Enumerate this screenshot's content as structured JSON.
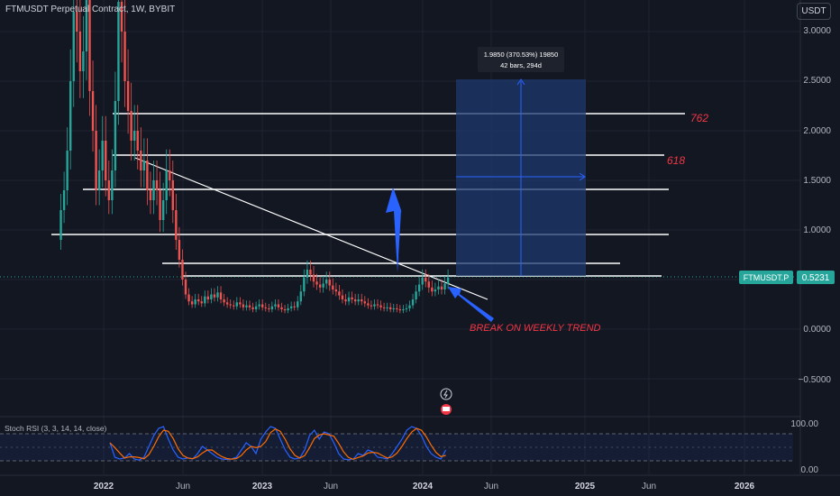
{
  "header": {
    "symbol_title": "FTMUSDT Perpetual Contract, 1W, BYBIT"
  },
  "currency_button": {
    "label": "USDT"
  },
  "price_axis": {
    "ticks": [
      "3.0000",
      "2.5000",
      "2.0000",
      "1.5000",
      "1.0000",
      "0.5000",
      "0.0000",
      "−0.5000"
    ]
  },
  "last_price": {
    "symbol": "FTMUSDT.P",
    "value": "0.5231",
    "color": "#26a69a"
  },
  "measure_tool": {
    "line1": "1.9850 (370.53%) 19850",
    "line2": "42 bars, 294d"
  },
  "fib_labels": {
    "level_762": "762",
    "level_618": "618"
  },
  "annotation": {
    "text": "BREAK ON WEEKLY TREND"
  },
  "stoch_rsi": {
    "label": "Stoch RSI (3, 3, 14, 14, close)",
    "ticks": [
      "100.00",
      "0.00"
    ]
  },
  "time_axis": {
    "labels": [
      "2022",
      "Jun",
      "2023",
      "Jun",
      "2024",
      "Jun",
      "2025",
      "Jun",
      "2026"
    ]
  },
  "colors": {
    "up": "#26a69a",
    "down": "#ef5350",
    "arrow": "#2962ff",
    "fib_text": "#f23645",
    "k_line": "#2962ff",
    "d_line": "#ff6d00"
  },
  "chart_data": {
    "type": "candlestick",
    "symbol": "FTMUSDT.P",
    "timeframe": "1W",
    "exchange": "BYBIT",
    "ylim": [
      -0.7,
      3.1
    ],
    "last": 0.5231,
    "horizontal_levels": [
      2.17,
      1.75,
      1.41,
      0.95,
      0.66,
      0.53
    ],
    "measure": {
      "from": 2.52,
      "to": 0.53,
      "change": 1.985,
      "pct": 370.53,
      "bars": 42,
      "days": 294
    },
    "stoch_rsi_range": [
      0,
      100
    ]
  }
}
